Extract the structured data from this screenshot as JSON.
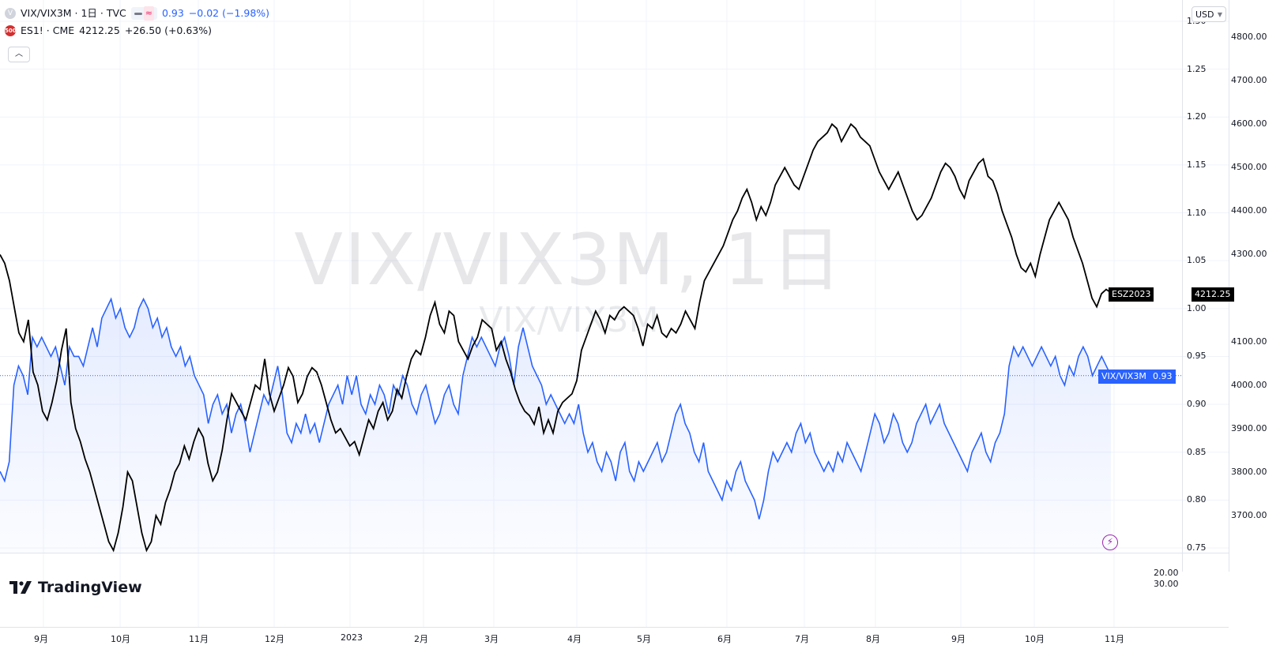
{
  "legend": {
    "vix": {
      "symbol": "VIX/VIX3M · 1日 · TVC",
      "value": "0.93",
      "change": "−0.02 (−1.98%)"
    },
    "es": {
      "icon_text": "500",
      "symbol": "ES1! · CME",
      "value": "4212.25",
      "change": "+26.50 (+0.63%)"
    }
  },
  "watermark": {
    "main": "VIX/VIX3M, 1日",
    "sub": "VIX/VIX3M"
  },
  "currency": "USD",
  "brand": "TradingView",
  "tags": {
    "es_label": "ESZ2023",
    "es_value": "4212.25",
    "vix_label": "VIX/VIX3M",
    "vix_value": "0.93"
  },
  "sub_pane_ticks": [
    "20.00",
    "30.00"
  ],
  "colors": {
    "es_line": "#000000",
    "vix_line": "#2962ff",
    "vix_fill": "#2962ff",
    "lightning": "#9c27b0"
  },
  "chart_data": {
    "type": "line",
    "x_axis": {
      "tick_labels": [
        "9月",
        "10月",
        "11月",
        "12月",
        "2023",
        "2月",
        "3月",
        "4月",
        "5月",
        "6月",
        "7月",
        "8月",
        "9月",
        "10月",
        "11月"
      ],
      "range": [
        "2022-08-24",
        "2023-11-06"
      ]
    },
    "left_price_axis": {
      "ticks": [
        "1.30",
        "1.25",
        "1.20",
        "1.15",
        "1.10",
        "1.05",
        "1.00",
        "0.95",
        "0.90",
        "0.85",
        "0.80",
        "0.75"
      ],
      "ylim": [
        0.75,
        1.3
      ]
    },
    "right_price_axis": {
      "ticks": [
        "4800.00",
        "4700.00",
        "4600.00",
        "4500.00",
        "4400.00",
        "4300.00",
        "4100.00",
        "4000.00",
        "3900.00",
        "3800.00",
        "3700.00"
      ],
      "ylim": [
        3620,
        4820
      ]
    },
    "series": [
      {
        "name": "VIX/VIX3M",
        "axis": "left",
        "style": "area",
        "last": 0.93,
        "values": [
          0.83,
          0.82,
          0.84,
          0.92,
          0.94,
          0.93,
          0.91,
          0.97,
          0.96,
          0.97,
          0.96,
          0.95,
          0.96,
          0.94,
          0.92,
          0.96,
          0.95,
          0.95,
          0.94,
          0.96,
          0.98,
          0.96,
          0.99,
          1.0,
          1.01,
          0.99,
          1.0,
          0.98,
          0.97,
          0.98,
          1.0,
          1.01,
          1.0,
          0.98,
          0.99,
          0.97,
          0.98,
          0.96,
          0.95,
          0.96,
          0.94,
          0.95,
          0.93,
          0.92,
          0.91,
          0.88,
          0.9,
          0.91,
          0.89,
          0.9,
          0.87,
          0.89,
          0.9,
          0.88,
          0.85,
          0.87,
          0.89,
          0.91,
          0.9,
          0.92,
          0.94,
          0.91,
          0.87,
          0.86,
          0.88,
          0.87,
          0.89,
          0.87,
          0.88,
          0.86,
          0.88,
          0.9,
          0.91,
          0.92,
          0.9,
          0.93,
          0.91,
          0.93,
          0.9,
          0.89,
          0.91,
          0.9,
          0.92,
          0.91,
          0.89,
          0.92,
          0.91,
          0.93,
          0.92,
          0.9,
          0.89,
          0.91,
          0.92,
          0.9,
          0.88,
          0.89,
          0.91,
          0.92,
          0.9,
          0.89,
          0.93,
          0.95,
          0.97,
          0.96,
          0.97,
          0.96,
          0.95,
          0.94,
          0.96,
          0.97,
          0.95,
          0.92,
          0.96,
          0.98,
          0.96,
          0.94,
          0.93,
          0.92,
          0.9,
          0.91,
          0.9,
          0.89,
          0.88,
          0.89,
          0.88,
          0.9,
          0.87,
          0.85,
          0.86,
          0.84,
          0.83,
          0.85,
          0.84,
          0.82,
          0.85,
          0.86,
          0.83,
          0.82,
          0.84,
          0.83,
          0.84,
          0.85,
          0.86,
          0.84,
          0.85,
          0.87,
          0.89,
          0.9,
          0.88,
          0.87,
          0.85,
          0.84,
          0.86,
          0.83,
          0.82,
          0.81,
          0.8,
          0.82,
          0.81,
          0.83,
          0.84,
          0.82,
          0.81,
          0.8,
          0.78,
          0.8,
          0.83,
          0.85,
          0.84,
          0.85,
          0.86,
          0.85,
          0.87,
          0.88,
          0.86,
          0.87,
          0.85,
          0.84,
          0.83,
          0.84,
          0.83,
          0.85,
          0.84,
          0.86,
          0.85,
          0.84,
          0.83,
          0.85,
          0.87,
          0.89,
          0.88,
          0.86,
          0.87,
          0.89,
          0.88,
          0.86,
          0.85,
          0.86,
          0.88,
          0.89,
          0.9,
          0.88,
          0.89,
          0.9,
          0.88,
          0.87,
          0.86,
          0.85,
          0.84,
          0.83,
          0.85,
          0.86,
          0.87,
          0.85,
          0.84,
          0.86,
          0.87,
          0.89,
          0.94,
          0.96,
          0.95,
          0.96,
          0.95,
          0.94,
          0.95,
          0.96,
          0.95,
          0.94,
          0.95,
          0.93,
          0.92,
          0.94,
          0.93,
          0.95,
          0.96,
          0.95,
          0.93,
          0.94,
          0.95,
          0.94,
          0.93
        ]
      },
      {
        "name": "ES1!",
        "axis": "right",
        "style": "line",
        "last": 4212.25,
        "values": [
          4300,
          4280,
          4240,
          4180,
          4120,
          4100,
          4150,
          4030,
          4000,
          3940,
          3920,
          3960,
          4010,
          4080,
          4130,
          3960,
          3900,
          3870,
          3830,
          3800,
          3760,
          3720,
          3680,
          3640,
          3620,
          3660,
          3720,
          3800,
          3780,
          3720,
          3660,
          3620,
          3640,
          3700,
          3680,
          3730,
          3760,
          3800,
          3820,
          3860,
          3830,
          3870,
          3900,
          3880,
          3820,
          3780,
          3800,
          3850,
          3920,
          3980,
          3960,
          3940,
          3920,
          3960,
          4000,
          3990,
          4060,
          3980,
          3940,
          3970,
          4000,
          4040,
          4020,
          3960,
          3980,
          4020,
          4040,
          4030,
          4000,
          3960,
          3920,
          3890,
          3900,
          3880,
          3860,
          3870,
          3840,
          3880,
          3920,
          3900,
          3940,
          3960,
          3920,
          3940,
          3990,
          3970,
          4020,
          4060,
          4080,
          4070,
          4110,
          4160,
          4190,
          4140,
          4120,
          4170,
          4160,
          4100,
          4080,
          4060,
          4090,
          4110,
          4150,
          4140,
          4130,
          4080,
          4100,
          4060,
          4030,
          3990,
          3960,
          3940,
          3930,
          3910,
          3950,
          3890,
          3920,
          3890,
          3940,
          3960,
          3970,
          3980,
          4010,
          4080,
          4110,
          4140,
          4170,
          4150,
          4120,
          4160,
          4150,
          4170,
          4180,
          4170,
          4160,
          4130,
          4090,
          4140,
          4130,
          4160,
          4120,
          4110,
          4130,
          4120,
          4140,
          4170,
          4150,
          4130,
          4190,
          4240,
          4260,
          4280,
          4300,
          4320,
          4350,
          4380,
          4400,
          4430,
          4450,
          4420,
          4380,
          4410,
          4390,
          4420,
          4460,
          4480,
          4500,
          4480,
          4460,
          4450,
          4480,
          4510,
          4540,
          4560,
          4570,
          4580,
          4600,
          4590,
          4560,
          4580,
          4600,
          4590,
          4570,
          4560,
          4550,
          4520,
          4490,
          4470,
          4450,
          4470,
          4490,
          4460,
          4430,
          4400,
          4380,
          4390,
          4410,
          4430,
          4460,
          4490,
          4510,
          4500,
          4480,
          4450,
          4430,
          4470,
          4490,
          4510,
          4520,
          4480,
          4470,
          4440,
          4400,
          4370,
          4340,
          4300,
          4270,
          4260,
          4280,
          4250,
          4300,
          4340,
          4380,
          4400,
          4420,
          4400,
          4380,
          4340,
          4310,
          4280,
          4240,
          4200,
          4180,
          4210,
          4220,
          4212.25
        ]
      }
    ],
    "watermark_title": "VIX/VIX3M, 1日"
  }
}
